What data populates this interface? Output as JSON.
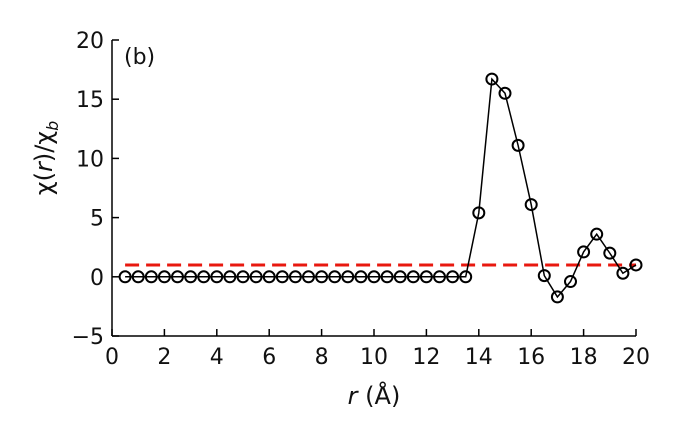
{
  "chart_data": {
    "type": "line",
    "annotation": "(b)",
    "xlabel": [
      "r",
      " (Å)"
    ],
    "ylabel": [
      "χ(",
      "r",
      ")/χ",
      "b"
    ],
    "x": [
      0.5,
      1,
      1.5,
      2,
      2.5,
      3,
      3.5,
      4,
      4.5,
      5,
      5.5,
      6,
      6.5,
      7,
      7.5,
      8,
      8.5,
      9,
      9.5,
      10,
      10.5,
      11,
      11.5,
      12,
      12.5,
      13,
      13.5,
      14,
      14.5,
      15,
      15.5,
      16,
      16.5,
      17,
      17.5,
      18,
      18.5,
      19,
      19.5,
      20
    ],
    "series": [
      {
        "color": "#000000",
        "values": [
          0,
          0,
          0,
          0,
          0,
          0,
          0,
          0,
          0,
          0,
          0,
          0,
          0,
          0,
          0,
          0,
          0,
          0,
          0,
          0,
          0,
          0,
          0,
          0,
          0,
          0,
          0,
          5.4,
          16.7,
          15.5,
          11.1,
          6.1,
          0.1,
          -1.7,
          -0.4,
          2.1,
          3.6,
          2.0,
          0.3,
          1.0
        ]
      }
    ],
    "reference_line": {
      "y": 1,
      "color": "#e8180f",
      "dashed": true
    },
    "xlim": [
      0,
      20
    ],
    "xticks": [
      0,
      2,
      4,
      6,
      8,
      10,
      12,
      14,
      16,
      18,
      20
    ],
    "ylim": [
      -5,
      20
    ],
    "yticks": [
      {
        "value": -5,
        "label": "−5"
      },
      0,
      5,
      10,
      15,
      20
    ],
    "grid": false
  }
}
